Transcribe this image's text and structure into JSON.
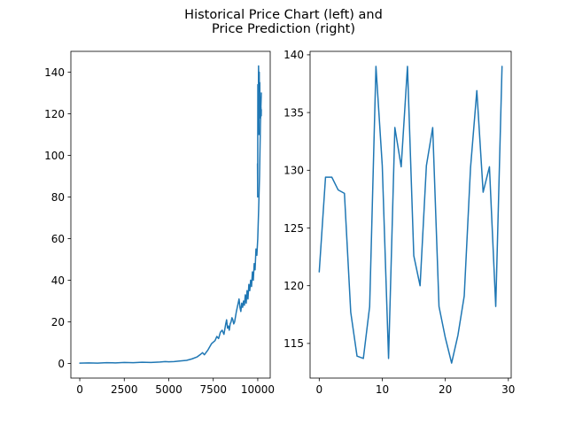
{
  "figure": {
    "title_line1": "Historical Price Chart (left) and",
    "title_line2": "Price Prediction (right)",
    "line_color": "#1f77b4"
  },
  "chart_data": [
    {
      "type": "line",
      "title": "",
      "xlabel": "",
      "ylabel": "",
      "xlim": [
        -500,
        10700
      ],
      "ylim": [
        -7,
        150
      ],
      "xticks": [
        0,
        2500,
        5000,
        7500,
        10000
      ],
      "yticks": [
        0,
        20,
        40,
        60,
        80,
        100,
        120,
        140
      ],
      "grid": false,
      "series": [
        {
          "x": [
            0,
            500,
            1000,
            1500,
            2000,
            2500,
            3000,
            3500,
            4000,
            4500,
            4800,
            5000,
            5300,
            5600,
            6000,
            6300,
            6600,
            6800,
            6900,
            7000,
            7200,
            7400,
            7600,
            7700,
            7800,
            7900,
            8000,
            8100,
            8200,
            8250,
            8300,
            8350,
            8400,
            8450,
            8500,
            8550,
            8600,
            8650,
            8700,
            8800,
            8900,
            8950,
            9000,
            9050,
            9100,
            9150,
            9200,
            9250,
            9300,
            9350,
            9400,
            9450,
            9500,
            9550,
            9600,
            9650,
            9700,
            9750,
            9800,
            9850,
            9900,
            9950,
            10000,
            10050,
            10100,
            10150,
            10200
          ],
          "y": [
            0.2,
            0.3,
            0.2,
            0.4,
            0.3,
            0.5,
            0.4,
            0.6,
            0.5,
            0.7,
            0.9,
            0.8,
            0.9,
            1.2,
            1.5,
            2.2,
            3.2,
            4.5,
            5.2,
            4.2,
            6.5,
            9.5,
            11,
            13,
            12,
            15,
            16,
            14,
            19,
            21,
            17,
            18,
            16,
            19,
            20,
            22,
            21,
            19,
            20,
            25,
            29,
            31,
            27,
            25,
            29,
            27,
            30,
            28,
            33,
            29,
            35,
            31,
            38,
            35,
            40,
            37,
            44,
            40,
            48,
            45,
            55,
            52,
            60,
            74,
            90,
            115,
            130
          ]
        },
        {
          "x": [
            9985,
            9995,
            10005,
            10015,
            10025,
            10035,
            10045,
            10055,
            10065,
            10075,
            10085,
            10095,
            10105,
            10115,
            10125,
            10135,
            10145,
            10155,
            10165,
            10175,
            10185,
            10195,
            10200
          ],
          "y": [
            96,
            80,
            134,
            120,
            128,
            125,
            143,
            138,
            110,
            125,
            140,
            120,
            130,
            135,
            118,
            122,
            128,
            125,
            120,
            123,
            121,
            119,
            122
          ]
        }
      ]
    },
    {
      "type": "line",
      "title": "",
      "xlabel": "",
      "ylabel": "",
      "xlim": [
        -1.45,
        30.45
      ],
      "ylim": [
        112.0,
        140.3
      ],
      "xticks": [
        0,
        10,
        20,
        30
      ],
      "yticks": [
        115,
        120,
        125,
        130,
        135,
        140
      ],
      "grid": false,
      "series": [
        {
          "x": [
            0,
            1,
            2,
            3,
            4,
            5,
            6,
            7,
            8,
            9,
            10,
            11,
            12,
            13,
            14,
            15,
            16,
            17,
            18,
            19,
            20,
            21,
            22,
            23,
            24,
            25,
            26,
            27,
            28,
            29
          ],
          "y": [
            121.2,
            129.4,
            129.4,
            128.3,
            128.0,
            117.7,
            113.9,
            113.7,
            118.2,
            139.0,
            130.4,
            113.7,
            133.7,
            130.3,
            139.0,
            122.6,
            120.0,
            130.4,
            133.7,
            118.2,
            115.5,
            113.3,
            115.7,
            119.1,
            130.2,
            136.9,
            128.1,
            130.3,
            118.2,
            139.0
          ]
        }
      ]
    }
  ]
}
